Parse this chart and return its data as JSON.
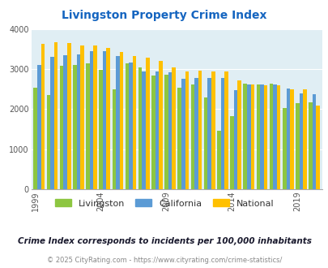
{
  "title": "Livingston Property Crime Index",
  "subtitle": "Crime Index corresponds to incidents per 100,000 inhabitants",
  "footer": "© 2025 CityRating.com - https://www.cityrating.com/crime-statistics/",
  "years": [
    1999,
    2000,
    2001,
    2002,
    2003,
    2004,
    2005,
    2006,
    2007,
    2008,
    2009,
    2010,
    2011,
    2012,
    2013,
    2014,
    2015,
    2016,
    2017,
    2018,
    2019,
    2020
  ],
  "livingston": [
    2540,
    2350,
    3090,
    3110,
    3150,
    2980,
    2490,
    3160,
    3050,
    2850,
    2860,
    2540,
    2620,
    2290,
    1460,
    1820,
    2640,
    2620,
    2650,
    2020,
    2160,
    2170
  ],
  "california": [
    3110,
    3310,
    3350,
    3380,
    3460,
    3450,
    3340,
    3180,
    2940,
    2950,
    2930,
    2770,
    2790,
    2790,
    2780,
    2480,
    2630,
    2620,
    2620,
    2520,
    2390,
    2370
  ],
  "national": [
    3630,
    3670,
    3660,
    3600,
    3600,
    3530,
    3430,
    3340,
    3300,
    3220,
    3050,
    2950,
    2970,
    2950,
    2940,
    2720,
    2620,
    2610,
    2610,
    2490,
    2490,
    2090
  ],
  "bar_colors": {
    "livingston": "#8DC641",
    "california": "#5B9BD5",
    "national": "#FFC000"
  },
  "background_color": "#E0EEF4",
  "ylim": [
    0,
    4000
  ],
  "yticks": [
    0,
    1000,
    2000,
    3000,
    4000
  ],
  "xtick_years": [
    1999,
    2004,
    2009,
    2014,
    2019
  ],
  "title_color": "#1565C0",
  "subtitle_color": "#1a1a2e",
  "footer_color": "#888888",
  "legend_labels": [
    "Livingston",
    "California",
    "National"
  ]
}
